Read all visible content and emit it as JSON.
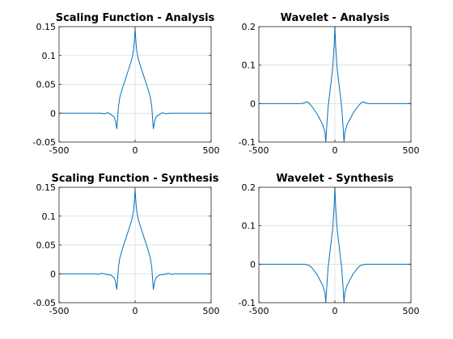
{
  "figure": {
    "background": "#ffffff",
    "axes_color": "#262626",
    "grid_color": "#dcdcdc",
    "line_color": "#0072bd"
  },
  "chart_data": [
    {
      "type": "line",
      "title": "Scaling Function - Analysis",
      "xlabel": "",
      "ylabel": "",
      "xlim": [
        -500,
        500
      ],
      "ylim": [
        -0.05,
        0.15
      ],
      "xticks": [
        -500,
        0,
        500
      ],
      "xtick_labels": [
        "-500",
        "0",
        "500"
      ],
      "yticks": [
        -0.05,
        0,
        0.05,
        0.1,
        0.15
      ],
      "ytick_labels": [
        "-0.05",
        "0",
        "0.05",
        "0.1",
        "0.15"
      ],
      "grid": true,
      "series": [
        {
          "x": [
            -500,
            -230,
            -200,
            -180,
            -160,
            -140,
            -130,
            -120,
            -118,
            -110,
            -100,
            -80,
            -60,
            -40,
            -20,
            -10,
            -5,
            0,
            5,
            10,
            20,
            40,
            60,
            80,
            100,
            110,
            118,
            120,
            130,
            140,
            160,
            180,
            200,
            230,
            500
          ],
          "y": [
            0,
            0,
            -0.001,
            0.001,
            -0.002,
            -0.006,
            -0.012,
            -0.027,
            -0.02,
            0.01,
            0.028,
            0.046,
            0.062,
            0.078,
            0.095,
            0.11,
            0.125,
            0.147,
            0.125,
            0.11,
            0.095,
            0.078,
            0.062,
            0.046,
            0.028,
            0.01,
            -0.02,
            -0.027,
            -0.012,
            -0.006,
            -0.002,
            0.001,
            -0.001,
            0,
            0
          ]
        }
      ]
    },
    {
      "type": "line",
      "title": "Wavelet - Analysis",
      "xlabel": "",
      "ylabel": "",
      "xlim": [
        -500,
        500
      ],
      "ylim": [
        -0.1,
        0.2
      ],
      "xticks": [
        -500,
        0,
        500
      ],
      "xtick_labels": [
        "-500",
        "0",
        "500"
      ],
      "yticks": [
        -0.1,
        0,
        0.1,
        0.2
      ],
      "ytick_labels": [
        "-0.1",
        "0",
        "0.1",
        "0.2"
      ],
      "grid": true,
      "series": [
        {
          "x": [
            -500,
            -220,
            -200,
            -185,
            -170,
            -150,
            -120,
            -100,
            -80,
            -65,
            -60,
            -52,
            -45,
            -30,
            -15,
            -5,
            0,
            5,
            15,
            30,
            45,
            52,
            60,
            65,
            80,
            100,
            120,
            150,
            170,
            185,
            200,
            220,
            500
          ],
          "y": [
            0,
            0,
            0.002,
            0.005,
            0.001,
            -0.008,
            -0.025,
            -0.04,
            -0.055,
            -0.075,
            -0.1,
            -0.05,
            -0.01,
            0.04,
            0.09,
            0.15,
            0.2,
            0.15,
            0.09,
            0.04,
            -0.01,
            -0.05,
            -0.1,
            -0.075,
            -0.055,
            -0.04,
            -0.025,
            -0.008,
            0.001,
            0.005,
            0.002,
            0,
            0
          ]
        }
      ]
    },
    {
      "type": "line",
      "title": "Scaling Function - Synthesis",
      "xlabel": "",
      "ylabel": "",
      "xlim": [
        -500,
        500
      ],
      "ylim": [
        -0.05,
        0.15
      ],
      "xticks": [
        -500,
        0,
        500
      ],
      "xtick_labels": [
        "-500",
        "0",
        "500"
      ],
      "yticks": [
        -0.05,
        0,
        0.05,
        0.1,
        0.15
      ],
      "ytick_labels": [
        "-0.05",
        "0",
        "0.05",
        "0.1",
        "0.15"
      ],
      "grid": true,
      "series": [
        {
          "x": [
            -500,
            -260,
            -240,
            -220,
            -190,
            -160,
            -140,
            -130,
            -120,
            -118,
            -110,
            -100,
            -80,
            -60,
            -40,
            -20,
            -10,
            -5,
            0,
            5,
            10,
            20,
            40,
            60,
            80,
            100,
            110,
            118,
            120,
            130,
            140,
            160,
            190,
            220,
            240,
            260,
            500
          ],
          "y": [
            0,
            0,
            -0.001,
            0.001,
            -0.001,
            -0.002,
            -0.006,
            -0.012,
            -0.027,
            -0.02,
            0.01,
            0.028,
            0.046,
            0.062,
            0.078,
            0.095,
            0.11,
            0.125,
            0.147,
            0.125,
            0.11,
            0.095,
            0.078,
            0.062,
            0.046,
            0.028,
            0.01,
            -0.02,
            -0.027,
            -0.012,
            -0.006,
            -0.002,
            -0.001,
            0.001,
            -0.001,
            0,
            0
          ]
        }
      ]
    },
    {
      "type": "line",
      "title": "Wavelet - Synthesis",
      "xlabel": "",
      "ylabel": "",
      "xlim": [
        -500,
        500
      ],
      "ylim": [
        -0.1,
        0.2
      ],
      "xticks": [
        -500,
        0,
        500
      ],
      "xtick_labels": [
        "-500",
        "0",
        "500"
      ],
      "yticks": [
        -0.1,
        0,
        0.1,
        0.2
      ],
      "ytick_labels": [
        "-0.1",
        "0",
        "0.1",
        "0.2"
      ],
      "grid": true,
      "series": [
        {
          "x": [
            -500,
            -200,
            -180,
            -165,
            -150,
            -120,
            -100,
            -80,
            -65,
            -60,
            -52,
            -45,
            -30,
            -15,
            -5,
            0,
            5,
            15,
            30,
            45,
            52,
            60,
            65,
            80,
            100,
            120,
            150,
            165,
            180,
            200,
            500
          ],
          "y": [
            0,
            0,
            -0.002,
            -0.004,
            -0.01,
            -0.025,
            -0.04,
            -0.055,
            -0.075,
            -0.1,
            -0.05,
            -0.01,
            0.04,
            0.09,
            0.15,
            0.2,
            0.15,
            0.09,
            0.04,
            -0.01,
            -0.05,
            -0.1,
            -0.075,
            -0.055,
            -0.04,
            -0.025,
            -0.01,
            -0.004,
            -0.002,
            0,
            0
          ]
        }
      ]
    }
  ]
}
